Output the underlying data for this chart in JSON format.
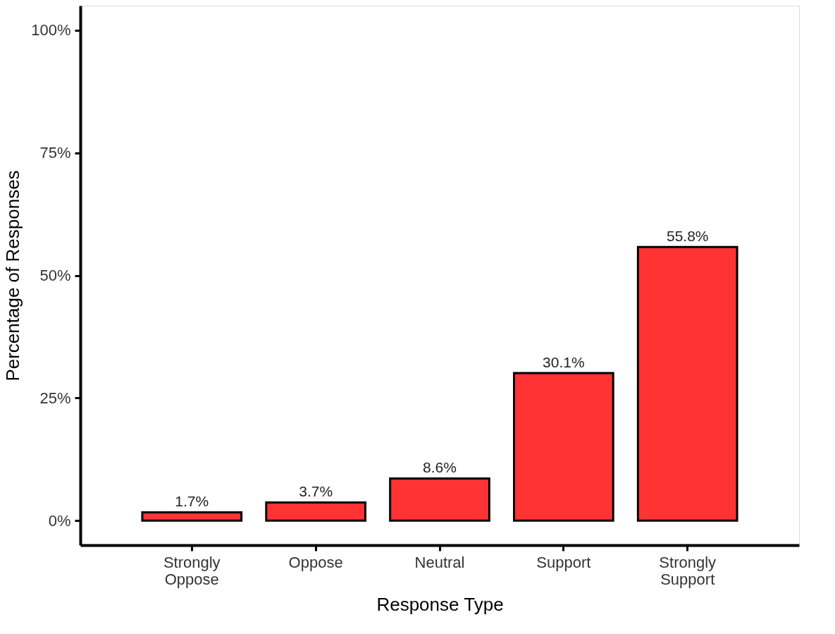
{
  "chart_data": {
    "type": "bar",
    "xlabel": "Response Type",
    "ylabel": "Percentage of Responses",
    "categories": [
      "Strongly Oppose",
      "Oppose",
      "Neutral",
      "Support",
      "Strongly Support"
    ],
    "values": [
      1.7,
      3.7,
      8.6,
      30.1,
      55.8
    ],
    "value_labels": [
      "1.7%",
      "3.7%",
      "8.6%",
      "30.1%",
      "55.8%"
    ],
    "color": "#ff3333",
    "ylim": [
      -5,
      105
    ],
    "yticks": [
      {
        "value": 0,
        "label": "0%"
      },
      {
        "value": 25,
        "label": "25%"
      },
      {
        "value": 50,
        "label": "50%"
      },
      {
        "value": 75,
        "label": "75%"
      },
      {
        "value": 100,
        "label": "100%"
      }
    ],
    "grid": false
  }
}
